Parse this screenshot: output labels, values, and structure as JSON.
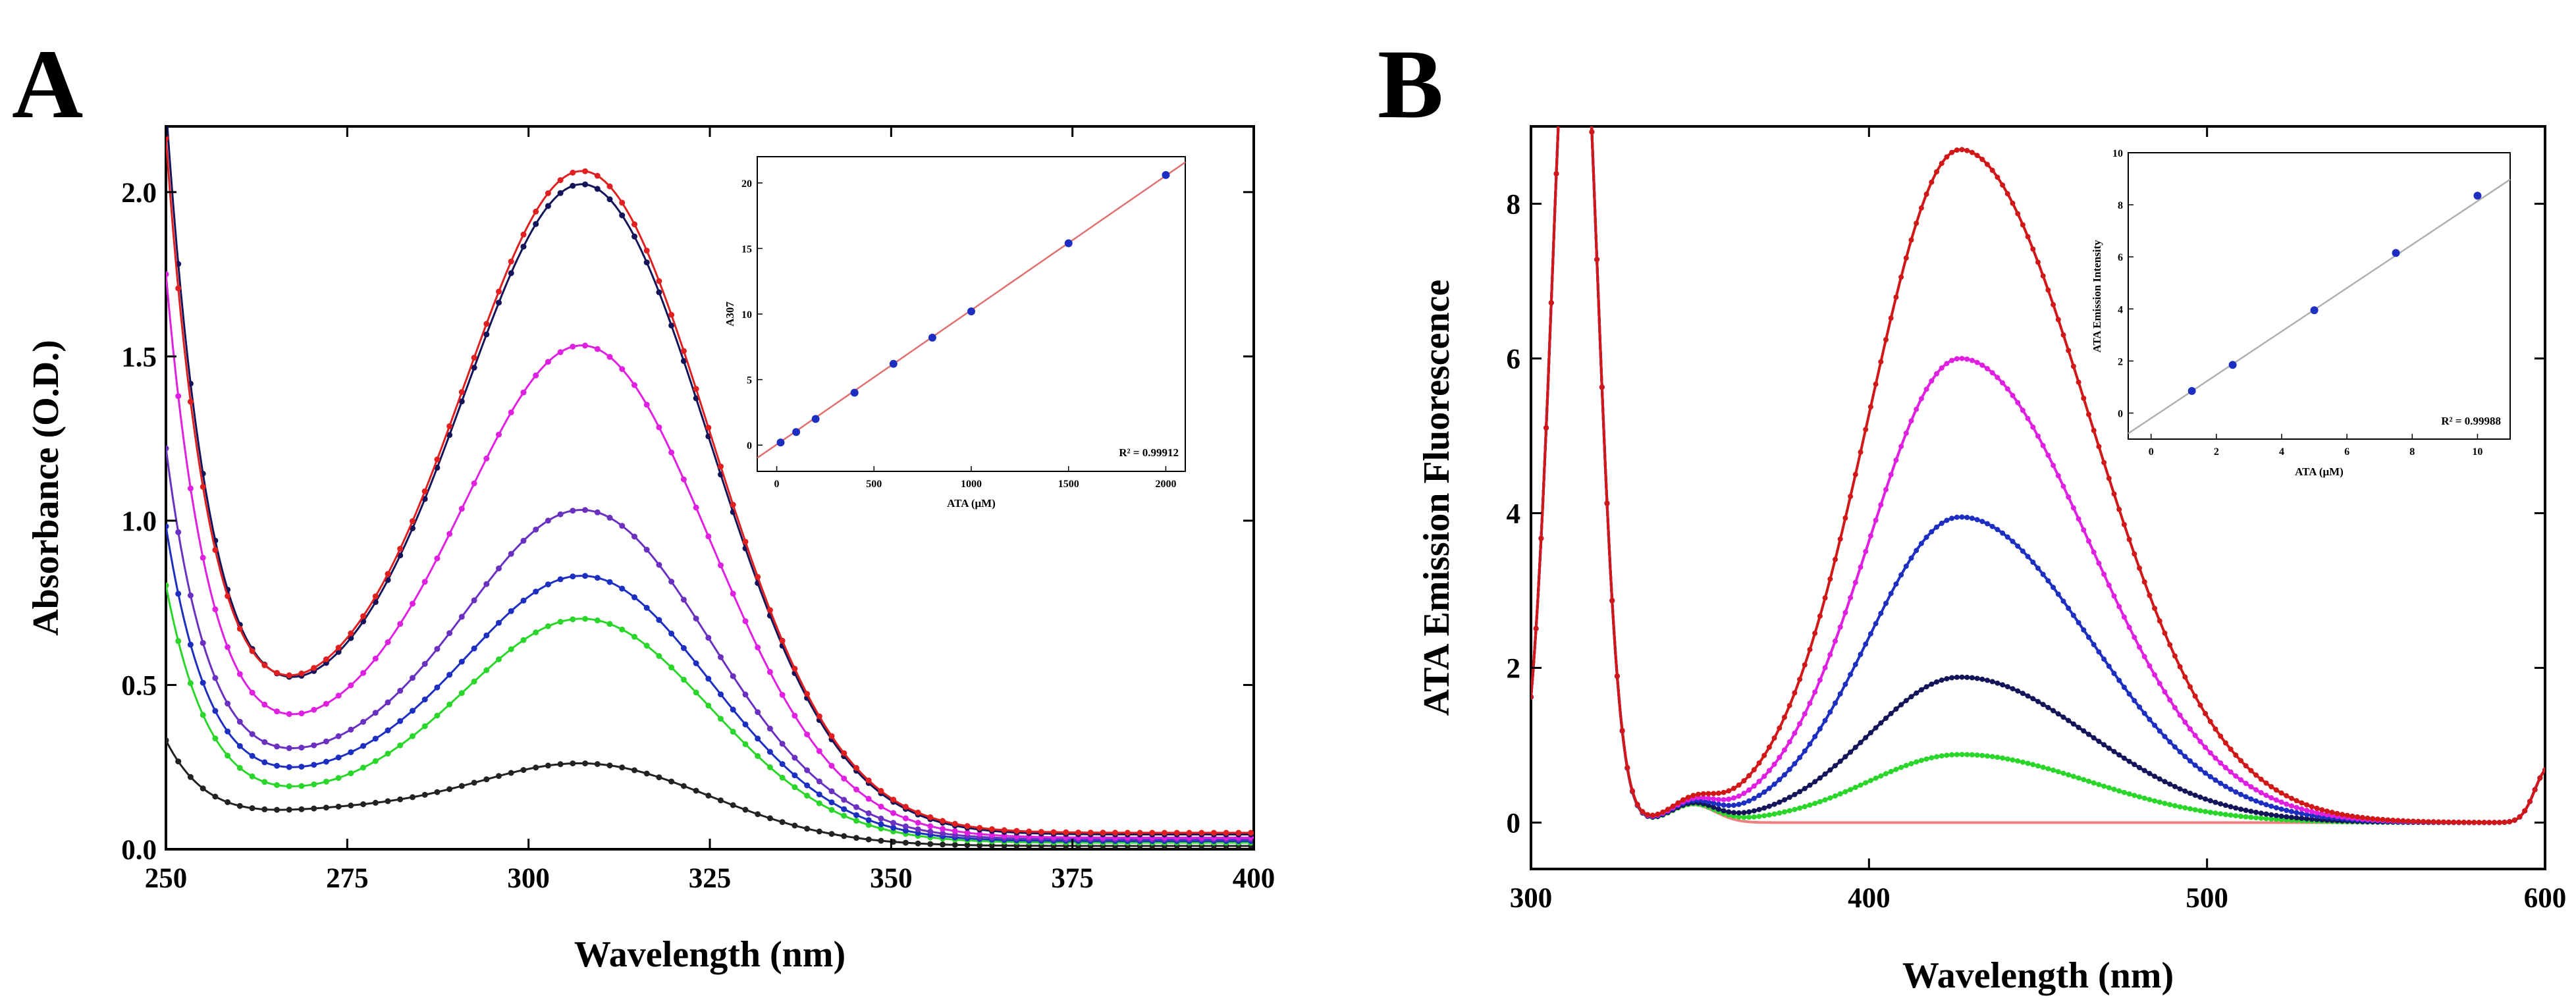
{
  "chart_data": [
    {
      "id": "A",
      "panel_label": "A",
      "type": "line",
      "xlabel": "Wavelength (nm)",
      "ylabel": "Absorbance (O.D.)",
      "xlim": [
        250,
        400
      ],
      "ylim": [
        0,
        2.2
      ],
      "xticks": [
        250,
        275,
        300,
        325,
        350,
        375,
        400
      ],
      "yticks": [
        0.0,
        0.5,
        1.0,
        1.5,
        2.0
      ],
      "ytick_labels": [
        "0.0",
        "0.5",
        "1.0",
        "1.5",
        "2.0"
      ],
      "series": [
        {
          "name": "A-black-low",
          "color": "#222222",
          "peak": 0.26,
          "valley": 0.125,
          "start": 0.31,
          "tail": 0.01
        },
        {
          "name": "A-green",
          "color": "#2bd62b",
          "peak": 0.7,
          "valley": 0.2,
          "start": 0.78,
          "tail": 0.02
        },
        {
          "name": "A-blue",
          "color": "#1d2fc0",
          "peak": 0.83,
          "valley": 0.26,
          "start": 0.95,
          "tail": 0.025
        },
        {
          "name": "A-purple",
          "color": "#6a30c0",
          "peak": 1.03,
          "valley": 0.32,
          "start": 1.18,
          "tail": 0.03
        },
        {
          "name": "A-magenta",
          "color": "#e020e0",
          "peak": 1.53,
          "valley": 0.43,
          "start": 1.7,
          "tail": 0.035
        },
        {
          "name": "A-navy",
          "color": "#14145a",
          "peak": 2.02,
          "valley": 0.55,
          "start": 2.2,
          "tail": 0.045
        },
        {
          "name": "A-red",
          "color": "#e02020",
          "peak": 2.06,
          "valley": 0.56,
          "start": 2.1,
          "tail": 0.05
        }
      ],
      "inset": {
        "xlabel": "ATA (μM)",
        "ylabel": "A307",
        "xlim": [
          -100,
          2100
        ],
        "ylim": [
          -2,
          22
        ],
        "xticks": [
          0,
          500,
          1000,
          1500,
          2000
        ],
        "yticks": [
          0,
          5,
          10,
          15,
          20
        ],
        "x": [
          20,
          100,
          200,
          400,
          600,
          800,
          1000,
          1500,
          2000
        ],
        "y": [
          0.2,
          1.0,
          2.0,
          4.0,
          6.2,
          8.2,
          10.2,
          15.4,
          20.6
        ],
        "fit": {
          "slope": 0.01025,
          "intercept": 0.05
        },
        "r2": "R² = 0.99912",
        "point_color": "#1d2fc0",
        "line_color": "#e07070"
      }
    },
    {
      "id": "B",
      "panel_label": "B",
      "type": "line",
      "xlabel": "Wavelength (nm)",
      "ylabel": "ATA Emission Fluorescence",
      "xlim": [
        300,
        600
      ],
      "ylim": [
        -0.6,
        9.0
      ],
      "xticks": [
        300,
        400,
        500,
        600
      ],
      "yticks": [
        0,
        2,
        4,
        6,
        8
      ],
      "ytick_labels": [
        "0",
        "2",
        "4",
        "6",
        "8"
      ],
      "series": [
        {
          "name": "B-pink-flat",
          "color": "#f08080",
          "peak": 0.0
        },
        {
          "name": "B-green",
          "color": "#2bd62b",
          "peak": 0.88
        },
        {
          "name": "B-navy",
          "color": "#14145a",
          "peak": 1.88
        },
        {
          "name": "B-blue",
          "color": "#1d2fc0",
          "peak": 3.95
        },
        {
          "name": "B-magenta",
          "color": "#e020e0",
          "peak": 6.0
        },
        {
          "name": "B-red",
          "color": "#d01818",
          "peak": 8.7
        }
      ],
      "inset": {
        "xlabel": "ATA (μM)",
        "ylabel": "ATA Emission Intensity",
        "xlim": [
          -0.7,
          11
        ],
        "ylim": [
          -1,
          10
        ],
        "xticks": [
          0,
          2,
          4,
          6,
          8,
          10
        ],
        "yticks": [
          0,
          2,
          4,
          6,
          8,
          10
        ],
        "x": [
          1.25,
          2.5,
          5,
          7.5,
          10
        ],
        "y": [
          0.85,
          1.85,
          3.95,
          6.15,
          8.35
        ],
        "fit": {
          "slope": 0.834,
          "intercept": -0.2
        },
        "r2": "R² = 0.99988",
        "point_color": "#1d2fc0",
        "line_color": "#b0b0b0"
      }
    }
  ]
}
